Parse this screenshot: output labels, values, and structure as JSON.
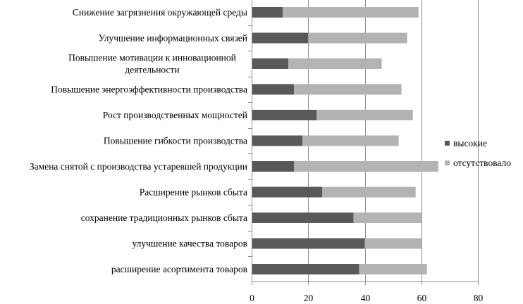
{
  "chart_data": {
    "type": "bar",
    "orientation": "horizontal",
    "stacked": true,
    "categories": [
      "Снижение загрязнения окружающей среды",
      "Улучшение информационных связей",
      "Повышение мотивации к инновационной деятельности",
      "Повышение энергоэффективности производства",
      "Рост производственных мощностей",
      "Повышение гибкости производства",
      "Замена снятой с производства устаревшей продукции",
      "Расширение рынков сбыта",
      "сохранение традиционных рынков сбыта",
      "улучшение качества товаров",
      "расширение асортимента товаров"
    ],
    "category_lines": [
      [
        "Снижение загрязнения окружающей среды"
      ],
      [
        "Улучшение информационных связей"
      ],
      [
        "Повышение мотивации к инновационной",
        "деятельности"
      ],
      [
        "Повышение энергоэффективности производства"
      ],
      [
        "Рост производственных мощностей"
      ],
      [
        "Повышение гибкости производства"
      ],
      [
        "Замена снятой с производства устаревшей продукции"
      ],
      [
        "Расширение рынков сбыта"
      ],
      [
        "сохранение традиционных рынков сбыта"
      ],
      [
        "улучшение качества товаров"
      ],
      [
        "расширение асортимента товаров"
      ]
    ],
    "series": [
      {
        "name": "высокие",
        "color": "#595959",
        "values": [
          11,
          20,
          13,
          15,
          23,
          18,
          15,
          25,
          36,
          40,
          38
        ]
      },
      {
        "name": "отсутствовало",
        "color": "#b3b3b3",
        "values": [
          48,
          35,
          33,
          38,
          34,
          34,
          51,
          33,
          24,
          20,
          24
        ]
      }
    ],
    "xlim": [
      0,
      80
    ],
    "xticks": [
      0,
      20,
      40,
      60,
      80
    ],
    "xlabel": "",
    "ylabel": "",
    "title": "",
    "grid": "vertical",
    "legend": "right"
  }
}
